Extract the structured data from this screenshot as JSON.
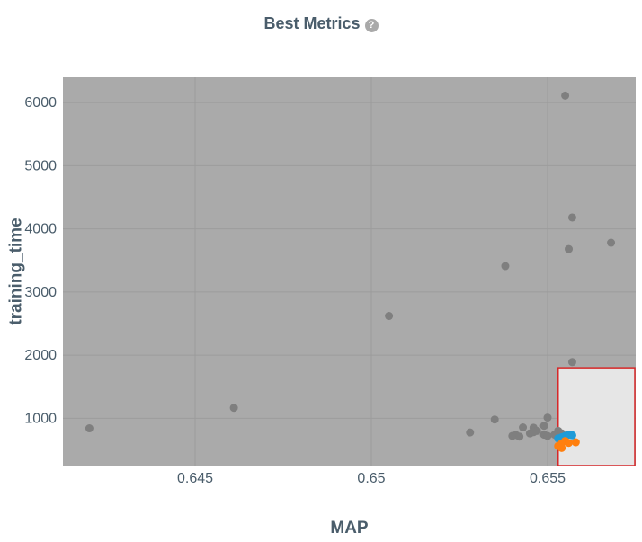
{
  "header": {
    "title": "Best Metrics",
    "help_icon": "question-circle-icon",
    "help_glyph": "?"
  },
  "colors": {
    "plot_bg": "#aaaaaa",
    "grid": "#9c9c9c",
    "highlight_fill": "#e6e6e6",
    "highlight_stroke": "#d62728",
    "gray_point": "#7f7f7f",
    "blue_point": "#1f9bd7",
    "orange_point": "#ff7f0e",
    "text": "#4a5d6b"
  },
  "chart_data": {
    "type": "scatter",
    "title": "Best Metrics",
    "xlabel": "MAP",
    "ylabel": "training_time",
    "xlim": [
      0.64125,
      0.6575
    ],
    "ylim": [
      250,
      6400
    ],
    "xticks": [
      0.645,
      0.65,
      0.655
    ],
    "xtick_labels": [
      "0.645",
      "0.65",
      "0.655"
    ],
    "yticks": [
      1000,
      2000,
      3000,
      4000,
      5000,
      6000
    ],
    "ytick_labels": [
      "1000",
      "2000",
      "3000",
      "4000",
      "5000",
      "6000"
    ],
    "grid": true,
    "highlight_region": {
      "x_from": 0.6553,
      "y_to": 1800
    },
    "series": [
      {
        "color": "gray",
        "points": [
          [
            0.642,
            840
          ],
          [
            0.6461,
            1165
          ],
          [
            0.6505,
            2620
          ],
          [
            0.6538,
            3410
          ],
          [
            0.6555,
            6110
          ],
          [
            0.6557,
            4180
          ],
          [
            0.6568,
            3780
          ],
          [
            0.6556,
            3680
          ],
          [
            0.6557,
            1890
          ],
          [
            0.6528,
            775
          ],
          [
            0.6535,
            980
          ],
          [
            0.654,
            720
          ],
          [
            0.6541,
            735
          ],
          [
            0.6542,
            710
          ],
          [
            0.6543,
            855
          ],
          [
            0.6545,
            760
          ],
          [
            0.6546,
            850
          ],
          [
            0.6547,
            800
          ],
          [
            0.6546,
            780
          ],
          [
            0.6549,
            880
          ],
          [
            0.6549,
            740
          ],
          [
            0.655,
            1010
          ],
          [
            0.655,
            720
          ],
          [
            0.6553,
            800
          ],
          [
            0.6554,
            760
          ],
          [
            0.6552,
            740
          ]
        ]
      },
      {
        "color": "blue",
        "points": [
          [
            0.6554,
            700
          ],
          [
            0.6555,
            720
          ],
          [
            0.6553,
            680
          ],
          [
            0.6556,
            740
          ],
          [
            0.6557,
            730
          ]
        ]
      },
      {
        "color": "orange",
        "points": [
          [
            0.6555,
            640
          ],
          [
            0.6554,
            600
          ],
          [
            0.6553,
            560
          ],
          [
            0.6554,
            530
          ],
          [
            0.6556,
            610
          ],
          [
            0.6558,
            620
          ]
        ]
      }
    ]
  }
}
